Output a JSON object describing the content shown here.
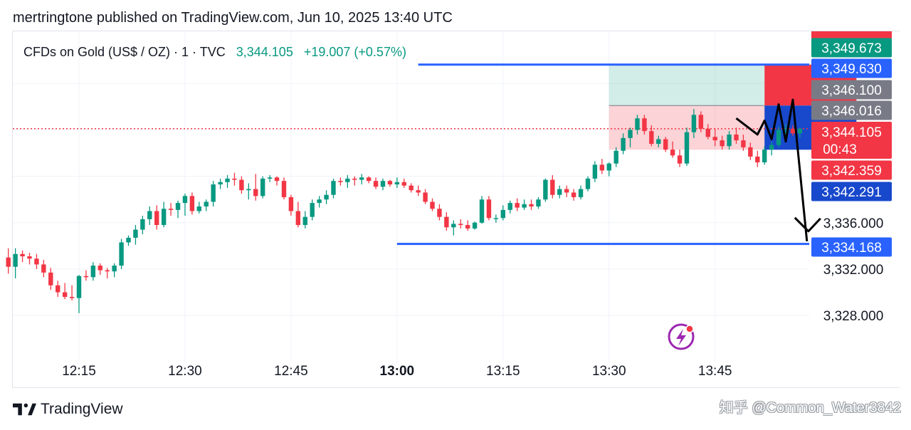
{
  "header": {
    "published": "mertringtone published on TradingView.com, Jun 10, 2025 13:40 UTC"
  },
  "legend": {
    "symbol": "CFDs on Gold (US$ / OZ) · 1 · TVC",
    "price": "3,344.105",
    "change": "+19.007 (+0.57%)"
  },
  "footer": {
    "brand": "TradingView",
    "watermark": "知乎 @Common_Water3842"
  },
  "colors": {
    "up": "#089981",
    "down": "#f23645",
    "line": "#2962ff",
    "blue_box": "#1848cc",
    "grey_box": "#787b86"
  },
  "chart_data": {
    "type": "candlestick",
    "symbol": "CFDs on Gold (US$ / OZ)",
    "interval": "1",
    "x_ticks": [
      "12:15",
      "12:30",
      "12:45",
      "13:00",
      "13:15",
      "13:30",
      "13:45"
    ],
    "x_ticks_bold": [
      "13:00"
    ],
    "y_ticks": [
      "3,336.000",
      "3,332.000",
      "3,328.000"
    ],
    "y_tick_values": [
      3336,
      3332,
      3328
    ],
    "ylim": [
      3325,
      3352.5
    ],
    "xlim_minutes": [
      725,
      765
    ],
    "candles": [
      {
        "t": "12:05",
        "o": 3333.0,
        "h": 3333.8,
        "l": 3331.6,
        "c": 3332.2
      },
      {
        "t": "12:06",
        "o": 3332.2,
        "h": 3333.8,
        "l": 3331.2,
        "c": 3333.3
      },
      {
        "t": "12:07",
        "o": 3333.3,
        "h": 3333.6,
        "l": 3332.6,
        "c": 3333.1
      },
      {
        "t": "12:08",
        "o": 3333.1,
        "h": 3333.4,
        "l": 3332.4,
        "c": 3332.9
      },
      {
        "t": "12:09",
        "o": 3332.9,
        "h": 3333.3,
        "l": 3332.0,
        "c": 3332.4
      },
      {
        "t": "12:10",
        "o": 3332.4,
        "h": 3332.8,
        "l": 3331.3,
        "c": 3331.7
      },
      {
        "t": "12:11",
        "o": 3331.7,
        "h": 3332.1,
        "l": 3330.2,
        "c": 3330.6
      },
      {
        "t": "12:12",
        "o": 3330.6,
        "h": 3331.0,
        "l": 3329.6,
        "c": 3330.0
      },
      {
        "t": "12:13",
        "o": 3330.0,
        "h": 3330.8,
        "l": 3329.4,
        "c": 3329.6
      },
      {
        "t": "12:14",
        "o": 3329.6,
        "h": 3330.6,
        "l": 3329.3,
        "c": 3329.5
      },
      {
        "t": "12:15",
        "o": 3329.5,
        "h": 3331.5,
        "l": 3328.2,
        "c": 3331.4
      },
      {
        "t": "12:16",
        "o": 3331.4,
        "h": 3331.9,
        "l": 3331.0,
        "c": 3331.3
      },
      {
        "t": "12:17",
        "o": 3331.3,
        "h": 3332.6,
        "l": 3331.0,
        "c": 3332.3
      },
      {
        "t": "12:18",
        "o": 3332.3,
        "h": 3332.5,
        "l": 3331.5,
        "c": 3331.9
      },
      {
        "t": "12:19",
        "o": 3331.9,
        "h": 3332.1,
        "l": 3331.2,
        "c": 3331.8
      },
      {
        "t": "12:20",
        "o": 3331.8,
        "h": 3332.5,
        "l": 3331.3,
        "c": 3332.3
      },
      {
        "t": "12:21",
        "o": 3332.3,
        "h": 3334.6,
        "l": 3332.0,
        "c": 3334.3
      },
      {
        "t": "12:22",
        "o": 3334.3,
        "h": 3334.9,
        "l": 3334.0,
        "c": 3334.7
      },
      {
        "t": "12:23",
        "o": 3334.7,
        "h": 3335.8,
        "l": 3334.1,
        "c": 3335.4
      },
      {
        "t": "12:24",
        "o": 3335.4,
        "h": 3336.6,
        "l": 3335.0,
        "c": 3336.3
      },
      {
        "t": "12:25",
        "o": 3336.3,
        "h": 3337.4,
        "l": 3335.8,
        "c": 3337.0
      },
      {
        "t": "12:26",
        "o": 3337.0,
        "h": 3337.5,
        "l": 3335.4,
        "c": 3335.8
      },
      {
        "t": "12:27",
        "o": 3335.8,
        "h": 3337.8,
        "l": 3335.6,
        "c": 3337.2
      },
      {
        "t": "12:28",
        "o": 3337.2,
        "h": 3337.7,
        "l": 3336.6,
        "c": 3337.1
      },
      {
        "t": "12:29",
        "o": 3337.1,
        "h": 3337.9,
        "l": 3336.4,
        "c": 3337.7
      },
      {
        "t": "12:30",
        "o": 3337.7,
        "h": 3338.5,
        "l": 3336.6,
        "c": 3338.3
      },
      {
        "t": "12:31",
        "o": 3338.3,
        "h": 3338.6,
        "l": 3336.7,
        "c": 3337.0
      },
      {
        "t": "12:32",
        "o": 3337.0,
        "h": 3337.8,
        "l": 3336.8,
        "c": 3337.4
      },
      {
        "t": "12:33",
        "o": 3337.4,
        "h": 3338.0,
        "l": 3337.0,
        "c": 3337.8
      },
      {
        "t": "12:34",
        "o": 3337.8,
        "h": 3339.6,
        "l": 3337.4,
        "c": 3339.3
      },
      {
        "t": "12:35",
        "o": 3339.3,
        "h": 3339.8,
        "l": 3338.9,
        "c": 3339.5
      },
      {
        "t": "12:36",
        "o": 3339.5,
        "h": 3340.1,
        "l": 3339.0,
        "c": 3339.8
      },
      {
        "t": "12:37",
        "o": 3339.8,
        "h": 3340.3,
        "l": 3339.2,
        "c": 3339.7
      },
      {
        "t": "12:38",
        "o": 3339.7,
        "h": 3340.0,
        "l": 3338.5,
        "c": 3338.8
      },
      {
        "t": "12:39",
        "o": 3338.8,
        "h": 3339.4,
        "l": 3338.0,
        "c": 3338.9
      },
      {
        "t": "12:40",
        "o": 3338.9,
        "h": 3340.2,
        "l": 3337.9,
        "c": 3338.3
      },
      {
        "t": "12:41",
        "o": 3338.3,
        "h": 3340.0,
        "l": 3338.1,
        "c": 3339.8
      },
      {
        "t": "12:42",
        "o": 3339.8,
        "h": 3340.1,
        "l": 3339.5,
        "c": 3339.9
      },
      {
        "t": "12:43",
        "o": 3339.9,
        "h": 3340.0,
        "l": 3339.2,
        "c": 3339.6
      },
      {
        "t": "12:44",
        "o": 3339.6,
        "h": 3339.9,
        "l": 3338.0,
        "c": 3338.2
      },
      {
        "t": "12:45",
        "o": 3338.2,
        "h": 3338.4,
        "l": 3336.6,
        "c": 3337.0
      },
      {
        "t": "12:46",
        "o": 3337.0,
        "h": 3337.8,
        "l": 3335.6,
        "c": 3335.8
      },
      {
        "t": "12:47",
        "o": 3335.8,
        "h": 3337.0,
        "l": 3335.5,
        "c": 3336.5
      },
      {
        "t": "12:48",
        "o": 3336.5,
        "h": 3338.0,
        "l": 3336.2,
        "c": 3337.7
      },
      {
        "t": "12:49",
        "o": 3337.7,
        "h": 3338.3,
        "l": 3337.3,
        "c": 3338.0
      },
      {
        "t": "12:50",
        "o": 3338.0,
        "h": 3338.8,
        "l": 3337.6,
        "c": 3338.4
      },
      {
        "t": "12:51",
        "o": 3338.4,
        "h": 3339.8,
        "l": 3338.1,
        "c": 3339.6
      },
      {
        "t": "12:52",
        "o": 3339.6,
        "h": 3339.9,
        "l": 3339.2,
        "c": 3339.5
      },
      {
        "t": "12:53",
        "o": 3339.5,
        "h": 3340.1,
        "l": 3339.0,
        "c": 3339.8
      },
      {
        "t": "12:54",
        "o": 3339.8,
        "h": 3340.0,
        "l": 3339.2,
        "c": 3339.7
      },
      {
        "t": "12:55",
        "o": 3339.7,
        "h": 3340.2,
        "l": 3339.3,
        "c": 3339.9
      },
      {
        "t": "12:56",
        "o": 3339.9,
        "h": 3340.0,
        "l": 3339.4,
        "c": 3339.6
      },
      {
        "t": "12:57",
        "o": 3339.6,
        "h": 3339.9,
        "l": 3338.9,
        "c": 3339.1
      },
      {
        "t": "12:58",
        "o": 3339.1,
        "h": 3339.8,
        "l": 3338.8,
        "c": 3339.6
      },
      {
        "t": "12:59",
        "o": 3339.6,
        "h": 3339.7,
        "l": 3339.1,
        "c": 3339.3
      },
      {
        "t": "13:00",
        "o": 3339.3,
        "h": 3339.9,
        "l": 3339.0,
        "c": 3339.5
      },
      {
        "t": "13:01",
        "o": 3339.5,
        "h": 3339.8,
        "l": 3339.0,
        "c": 3339.2
      },
      {
        "t": "13:02",
        "o": 3339.2,
        "h": 3339.4,
        "l": 3338.6,
        "c": 3338.8
      },
      {
        "t": "13:03",
        "o": 3338.8,
        "h": 3339.2,
        "l": 3338.3,
        "c": 3338.6
      },
      {
        "t": "13:04",
        "o": 3338.6,
        "h": 3338.9,
        "l": 3337.6,
        "c": 3337.8
      },
      {
        "t": "13:05",
        "o": 3337.8,
        "h": 3338.1,
        "l": 3337.0,
        "c": 3337.2
      },
      {
        "t": "13:06",
        "o": 3337.2,
        "h": 3337.6,
        "l": 3336.2,
        "c": 3336.5
      },
      {
        "t": "13:07",
        "o": 3336.5,
        "h": 3336.9,
        "l": 3335.3,
        "c": 3335.6
      },
      {
        "t": "13:08",
        "o": 3335.6,
        "h": 3336.2,
        "l": 3334.9,
        "c": 3335.9
      },
      {
        "t": "13:09",
        "o": 3335.9,
        "h": 3336.3,
        "l": 3335.5,
        "c": 3335.8
      },
      {
        "t": "13:10",
        "o": 3335.8,
        "h": 3336.2,
        "l": 3335.3,
        "c": 3335.5
      },
      {
        "t": "13:11",
        "o": 3335.5,
        "h": 3336.1,
        "l": 3335.4,
        "c": 3336.0
      },
      {
        "t": "13:12",
        "o": 3336.0,
        "h": 3338.3,
        "l": 3335.9,
        "c": 3338.0
      },
      {
        "t": "13:13",
        "o": 3338.0,
        "h": 3338.3,
        "l": 3336.2,
        "c": 3336.4
      },
      {
        "t": "13:14",
        "o": 3336.4,
        "h": 3336.7,
        "l": 3336.0,
        "c": 3336.4
      },
      {
        "t": "13:15",
        "o": 3336.4,
        "h": 3337.5,
        "l": 3336.2,
        "c": 3337.1
      },
      {
        "t": "13:16",
        "o": 3337.1,
        "h": 3337.9,
        "l": 3336.8,
        "c": 3337.7
      },
      {
        "t": "13:17",
        "o": 3337.7,
        "h": 3338.1,
        "l": 3337.0,
        "c": 3337.3
      },
      {
        "t": "13:18",
        "o": 3337.3,
        "h": 3338.0,
        "l": 3337.1,
        "c": 3337.6
      },
      {
        "t": "13:19",
        "o": 3337.6,
        "h": 3338.0,
        "l": 3337.1,
        "c": 3337.4
      },
      {
        "t": "13:20",
        "o": 3337.4,
        "h": 3338.2,
        "l": 3337.2,
        "c": 3338.0
      },
      {
        "t": "13:21",
        "o": 3338.0,
        "h": 3339.8,
        "l": 3337.8,
        "c": 3339.7
      },
      {
        "t": "13:22",
        "o": 3339.7,
        "h": 3340.1,
        "l": 3338.1,
        "c": 3338.4
      },
      {
        "t": "13:23",
        "o": 3338.4,
        "h": 3339.2,
        "l": 3338.1,
        "c": 3338.9
      },
      {
        "t": "13:24",
        "o": 3338.9,
        "h": 3339.2,
        "l": 3338.2,
        "c": 3338.6
      },
      {
        "t": "13:25",
        "o": 3338.6,
        "h": 3338.9,
        "l": 3337.9,
        "c": 3338.2
      },
      {
        "t": "13:26",
        "o": 3338.2,
        "h": 3339.2,
        "l": 3338.0,
        "c": 3338.9
      },
      {
        "t": "13:27",
        "o": 3338.9,
        "h": 3340.0,
        "l": 3338.7,
        "c": 3339.8
      },
      {
        "t": "13:28",
        "o": 3339.8,
        "h": 3341.3,
        "l": 3339.5,
        "c": 3341.0
      },
      {
        "t": "13:29",
        "o": 3341.0,
        "h": 3341.5,
        "l": 3340.2,
        "c": 3340.5
      },
      {
        "t": "13:30",
        "o": 3340.5,
        "h": 3341.2,
        "l": 3340.0,
        "c": 3341.1
      },
      {
        "t": "13:31",
        "o": 3341.1,
        "h": 3342.5,
        "l": 3340.8,
        "c": 3342.2
      },
      {
        "t": "13:32",
        "o": 3342.2,
        "h": 3343.7,
        "l": 3341.9,
        "c": 3343.3
      },
      {
        "t": "13:33",
        "o": 3343.3,
        "h": 3344.2,
        "l": 3342.5,
        "c": 3344.0
      },
      {
        "t": "13:34",
        "o": 3344.0,
        "h": 3345.3,
        "l": 3343.6,
        "c": 3345.0
      },
      {
        "t": "13:35",
        "o": 3345.0,
        "h": 3345.3,
        "l": 3343.6,
        "c": 3343.9
      },
      {
        "t": "13:36",
        "o": 3343.9,
        "h": 3344.4,
        "l": 3342.6,
        "c": 3342.8
      },
      {
        "t": "13:37",
        "o": 3342.8,
        "h": 3343.5,
        "l": 3342.5,
        "c": 3343.2
      },
      {
        "t": "13:38",
        "o": 3343.2,
        "h": 3343.4,
        "l": 3342.1,
        "c": 3342.3
      },
      {
        "t": "13:39",
        "o": 3342.3,
        "h": 3343.0,
        "l": 3341.6,
        "c": 3341.8
      },
      {
        "t": "13:40",
        "o": 3341.8,
        "h": 3342.3,
        "l": 3340.8,
        "c": 3341.1
      },
      {
        "t": "13:41",
        "o": 3341.1,
        "h": 3344.2,
        "l": 3340.9,
        "c": 3343.8
      },
      {
        "t": "13:42",
        "o": 3343.8,
        "h": 3345.8,
        "l": 3343.3,
        "c": 3345.3
      },
      {
        "t": "13:43",
        "o": 3345.3,
        "h": 3345.6,
        "l": 3343.8,
        "c": 3344.1
      },
      {
        "t": "13:44",
        "o": 3344.1,
        "h": 3344.5,
        "l": 3343.2,
        "c": 3343.4
      },
      {
        "t": "13:45",
        "o": 3343.4,
        "h": 3344.1,
        "l": 3342.6,
        "c": 3343.1
      },
      {
        "t": "13:46",
        "o": 3343.1,
        "h": 3343.5,
        "l": 3342.3,
        "c": 3342.6
      },
      {
        "t": "13:47",
        "o": 3342.6,
        "h": 3343.9,
        "l": 3342.3,
        "c": 3343.6
      },
      {
        "t": "13:48",
        "o": 3343.6,
        "h": 3344.2,
        "l": 3342.8,
        "c": 3343.1
      },
      {
        "t": "13:49",
        "o": 3343.1,
        "h": 3343.6,
        "l": 3342.2,
        "c": 3342.5
      },
      {
        "t": "13:50",
        "o": 3342.5,
        "h": 3342.9,
        "l": 3341.4,
        "c": 3341.7
      },
      {
        "t": "13:51",
        "o": 3341.7,
        "h": 3342.2,
        "l": 3340.8,
        "c": 3341.2
      },
      {
        "t": "13:52",
        "o": 3341.2,
        "h": 3342.6,
        "l": 3341.0,
        "c": 3342.3
      },
      {
        "t": "13:53",
        "o": 3342.3,
        "h": 3343.0,
        "l": 3341.8,
        "c": 3342.7
      },
      {
        "t": "13:54",
        "o": 3342.7,
        "h": 3344.3,
        "l": 3342.5,
        "c": 3344.0
      },
      {
        "t": "13:55",
        "o": 3344.0,
        "h": 3344.5,
        "l": 3343.5,
        "c": 3344.1
      },
      {
        "t": "13:56",
        "o": 3344.1,
        "h": 3344.4,
        "l": 3343.5,
        "c": 3343.7
      },
      {
        "t": "13:57",
        "o": 3343.7,
        "h": 3344.2,
        "l": 3343.3,
        "c": 3344.1
      }
    ],
    "horizontal_lines": [
      {
        "price": 3349.63,
        "color": "#2962ff",
        "from": "13:03"
      },
      {
        "price": 3334.168,
        "color": "#2962ff",
        "from": "13:00"
      }
    ],
    "current_price_line": 3344.105,
    "position_tool": {
      "entry": 3346.1,
      "target": 3342.291,
      "stop": 3349.63,
      "from": "13:30",
      "to": "13:52",
      "right_extension_from": "13:52",
      "right_extension_to": "14:05"
    },
    "price_labels": [
      {
        "text": "3,349.673",
        "price": 3349.673,
        "color": "#089981"
      },
      {
        "text": "3,349.630",
        "price": 3349.63,
        "color": "#2962ff"
      },
      {
        "text": "3,346.100",
        "price": 3346.1,
        "color": "#787b86"
      },
      {
        "text": "3,346.016",
        "price": 3346.016,
        "color": "#787b86"
      },
      {
        "text": "3,344.105",
        "price": 3344.105,
        "color": "#f23645",
        "sub": "00:43"
      },
      {
        "text": "3,342.359",
        "price": 3342.359,
        "color": "#f23645"
      },
      {
        "text": "3,342.291",
        "price": 3342.291,
        "color": "#1848cc"
      },
      {
        "text": "3,334.168",
        "price": 3334.168,
        "color": "#2962ff"
      }
    ],
    "drawing_path": [
      {
        "t": "13:48",
        "p": 3345.0
      },
      {
        "t": "13:51",
        "p": 3343.6
      },
      {
        "t": "13:52",
        "p": 3344.8
      },
      {
        "t": "13:53",
        "p": 3343.2
      },
      {
        "t": "13:54",
        "p": 3346.2
      },
      {
        "t": "13:55",
        "p": 3343.0
      },
      {
        "t": "13:56",
        "p": 3346.6
      },
      {
        "t": "13:58",
        "p": 3334.4
      }
    ]
  }
}
